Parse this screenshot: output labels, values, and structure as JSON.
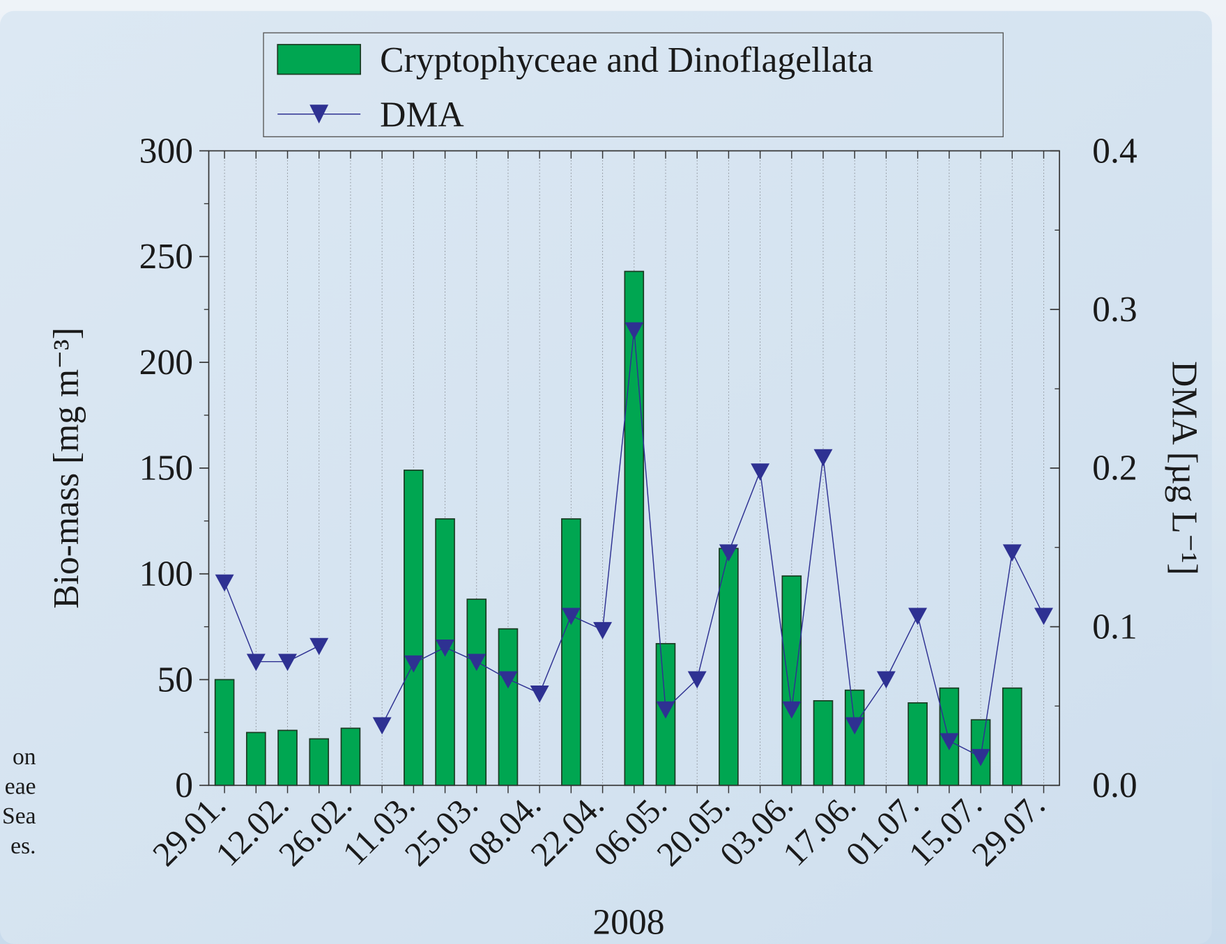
{
  "chart_data": {
    "type": "bar_line",
    "categories": [
      "29.01.",
      null,
      "12.02.",
      null,
      "26.02.",
      null,
      "11.03.",
      null,
      "25.03.",
      null,
      "08.04.",
      null,
      "22.04.",
      null,
      "06.05.",
      null,
      "20.05.",
      null,
      "03.06.",
      null,
      "17.06.",
      null,
      "01.07.",
      null,
      "15.07.",
      null,
      "29.07."
    ],
    "xlabel": "2008",
    "ylabel": "Bio-mass [mg m⁻³]",
    "y2label": "DMA [µg L⁻¹]",
    "ylim": [
      0,
      300
    ],
    "yticks": [
      0,
      50,
      100,
      150,
      200,
      250,
      300
    ],
    "y2lim": [
      0,
      0.4
    ],
    "y2ticks": [
      {
        "value": 0,
        "label": "0.0"
      },
      0.1,
      0.2,
      0.3,
      0.4
    ],
    "grid": "x",
    "legend": "top",
    "series": [
      {
        "name": "Cryptophyceae and Dinoflagellata",
        "type": "bar",
        "color": "#00a651",
        "values": [
          50,
          25,
          26,
          22,
          27,
          null,
          149,
          126,
          88,
          74,
          null,
          126,
          null,
          243,
          67,
          null,
          112,
          null,
          99,
          40,
          45,
          null,
          39,
          46,
          31,
          46,
          null
        ]
      },
      {
        "name": "DMA",
        "type": "line",
        "axis": "y2",
        "color": "#2e3192",
        "values": [
          0.128,
          0.078,
          0.078,
          0.088,
          null,
          0.038,
          0.077,
          0.087,
          0.078,
          0.067,
          0.058,
          0.107,
          0.098,
          0.287,
          0.048,
          0.067,
          0.147,
          0.198,
          0.048,
          0.207,
          0.038,
          0.067,
          0.107,
          0.028,
          0.018,
          0.147,
          0.107
        ]
      }
    ]
  },
  "caption_fragments": [
    "on",
    "eae",
    "Sea",
    "es."
  ]
}
